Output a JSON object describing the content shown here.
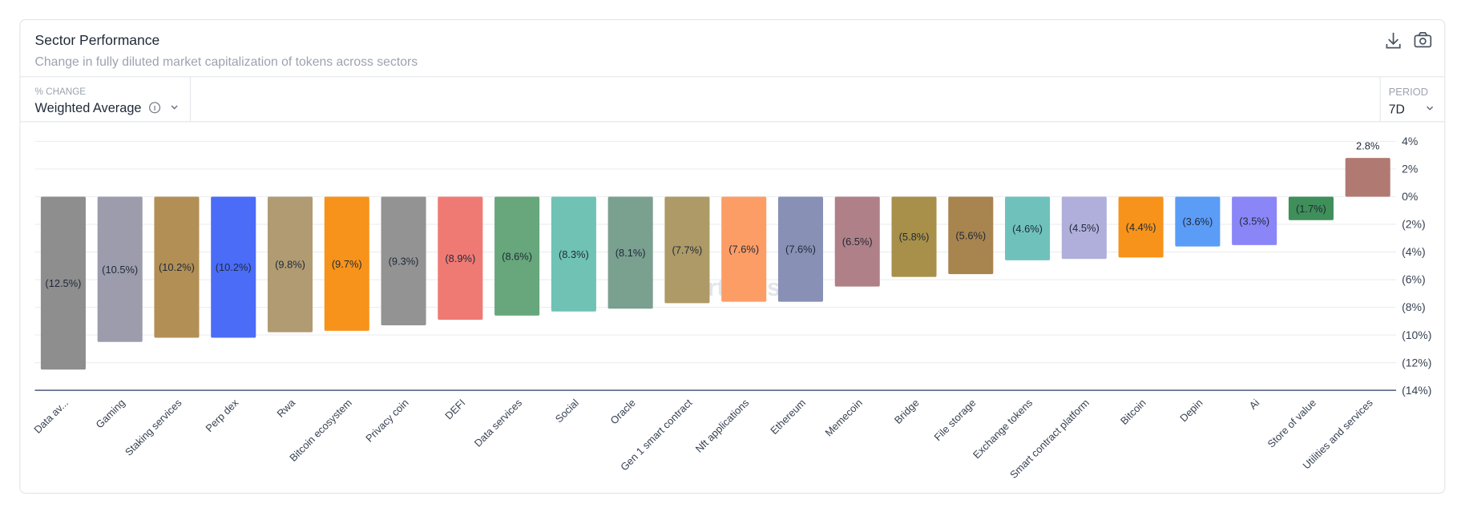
{
  "header": {
    "title": "Sector Performance",
    "subtitle": "Change in fully diluted market capitalization of tokens across sectors"
  },
  "controls": {
    "metric_label": "% CHANGE",
    "metric_value": "Weighted Average",
    "period_label": "PERIOD",
    "period_value": "7D"
  },
  "watermark": "Artemis",
  "chart_data": {
    "type": "bar",
    "categories": [
      "Data av...",
      "Gaming",
      "Staking services",
      "Perp dex",
      "Rwa",
      "Bitcoin ecosystem",
      "Privacy coin",
      "DEFI",
      "Data services",
      "Social",
      "Oracle",
      "Gen 1 smart contract",
      "Nft applications",
      "Ethereum",
      "Memecoin",
      "Bridge",
      "File storage",
      "Exchange tokens",
      "Smart contract platform",
      "Bitcoin",
      "Depin",
      "Ai",
      "Store of value",
      "Utilities and services"
    ],
    "values": [
      -12.5,
      -10.5,
      -10.2,
      -10.2,
      -9.8,
      -9.7,
      -9.3,
      -8.9,
      -8.6,
      -8.3,
      -8.1,
      -7.7,
      -7.6,
      -7.6,
      -6.5,
      -5.8,
      -5.6,
      -4.6,
      -4.5,
      -4.4,
      -3.6,
      -3.5,
      -1.7,
      2.8
    ],
    "value_labels": [
      "(12.5%)",
      "(10.5%)",
      "(10.2%)",
      "(10.2%)",
      "(9.8%)",
      "(9.7%)",
      "(9.3%)",
      "(8.9%)",
      "(8.6%)",
      "(8.3%)",
      "(8.1%)",
      "(7.7%)",
      "(7.6%)",
      "(7.6%)",
      "(6.5%)",
      "(5.8%)",
      "(5.6%)",
      "(4.6%)",
      "(4.5%)",
      "(4.4%)",
      "(3.6%)",
      "(3.5%)",
      "(1.7%)",
      "2.8%"
    ],
    "colors": [
      "#8e8e8e",
      "#9c9cad",
      "#b28f55",
      "#4a6cf7",
      "#b09b72",
      "#f7931a",
      "#939393",
      "#ef7a74",
      "#67a77b",
      "#6fc2b4",
      "#7aa090",
      "#ae9a67",
      "#fd9d66",
      "#8890b5",
      "#b08088",
      "#a8904a",
      "#a8844f",
      "#6fc2bb",
      "#b0afdb",
      "#f7931a",
      "#5b9cf7",
      "#8b86f7",
      "#3f8f5a",
      "#b07a72"
    ],
    "ylim": [
      -14,
      4
    ],
    "yticks": [
      {
        "value": 4,
        "label": "4%"
      },
      {
        "value": 2,
        "label": "2%"
      },
      {
        "value": 0,
        "label": "0%"
      },
      {
        "value": -2,
        "label": "(2%)"
      },
      {
        "value": -4,
        "label": "(4%)"
      },
      {
        "value": -6,
        "label": "(6%)"
      },
      {
        "value": -8,
        "label": "(8%)"
      },
      {
        "value": -10,
        "label": "(10%)"
      },
      {
        "value": -12,
        "label": "(12%)"
      },
      {
        "value": -14,
        "label": "(14%)"
      }
    ],
    "grid": true
  }
}
